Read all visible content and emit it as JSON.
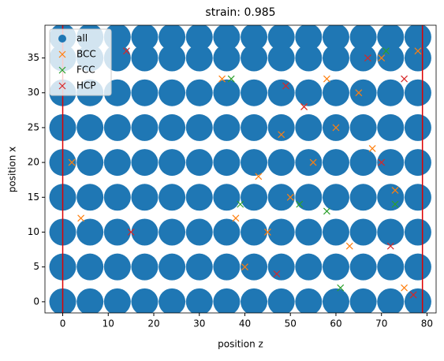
{
  "chart_data": {
    "type": "scatter",
    "title": "strain: 0.985",
    "xlabel": "position z",
    "ylabel": "position x",
    "xlim": [
      -3.9,
      82
    ],
    "ylim": [
      -1.6,
      39.7
    ],
    "xticks": [
      0,
      10,
      20,
      30,
      40,
      50,
      60,
      70,
      80
    ],
    "yticks": [
      0,
      5,
      10,
      15,
      20,
      25,
      30,
      35
    ],
    "legend": "upper left",
    "vlines": {
      "values": [
        0,
        79
      ],
      "color": "#e00000"
    },
    "series": [
      {
        "name": "all",
        "color": "#1f77b4",
        "marker": "o",
        "x": [
          0,
          6,
          12,
          18,
          24,
          30,
          36,
          42,
          48,
          54,
          60,
          66,
          72,
          78,
          0,
          6,
          12,
          18,
          24,
          30,
          36,
          42,
          48,
          54,
          60,
          66,
          72,
          78,
          0,
          6,
          12,
          18,
          24,
          30,
          36,
          42,
          48,
          54,
          60,
          66,
          72,
          78,
          0,
          6,
          12,
          18,
          24,
          30,
          36,
          42,
          48,
          54,
          60,
          66,
          72,
          78,
          0,
          6,
          12,
          18,
          24,
          30,
          36,
          42,
          48,
          54,
          60,
          66,
          72,
          78,
          0,
          6,
          12,
          18,
          24,
          30,
          36,
          42,
          48,
          54,
          60,
          66,
          72,
          78,
          0,
          6,
          12,
          18,
          24,
          30,
          36,
          42,
          48,
          54,
          60,
          66,
          72,
          78,
          0,
          6,
          12,
          18,
          24,
          30,
          36,
          42,
          48,
          54,
          60,
          66,
          72,
          78,
          0,
          6,
          12,
          18,
          24,
          30,
          36,
          42,
          48,
          54,
          60,
          66,
          72,
          78
        ],
        "values": [
          0,
          0,
          0,
          0,
          0,
          0,
          0,
          0,
          0,
          0,
          0,
          0,
          0,
          0,
          5,
          5,
          5,
          5,
          5,
          5,
          5,
          5,
          5,
          5,
          5,
          5,
          5,
          5,
          10,
          10,
          10,
          10,
          10,
          10,
          10,
          10,
          10,
          10,
          10,
          10,
          10,
          10,
          15,
          15,
          15,
          15,
          15,
          15,
          15,
          15,
          15,
          15,
          15,
          15,
          15,
          15,
          20,
          20,
          20,
          20,
          20,
          20,
          20,
          20,
          20,
          20,
          20,
          20,
          20,
          20,
          25,
          25,
          25,
          25,
          25,
          25,
          25,
          25,
          25,
          25,
          25,
          25,
          25,
          25,
          30,
          30,
          30,
          30,
          30,
          30,
          30,
          30,
          30,
          30,
          30,
          30,
          30,
          30,
          35,
          35,
          35,
          35,
          35,
          35,
          35,
          35,
          35,
          35,
          35,
          35,
          35,
          35,
          38,
          38,
          38,
          38,
          38,
          38,
          38,
          38,
          38,
          38,
          38,
          38,
          38,
          38
        ]
      },
      {
        "name": "BCC",
        "color": "#ff7f0e",
        "marker": "x",
        "x": [
          40,
          45,
          50,
          55,
          60,
          65,
          70,
          75,
          38,
          43,
          48,
          53,
          58,
          63,
          68,
          73,
          78,
          2,
          4,
          35
        ],
        "values": [
          5,
          10,
          15,
          20,
          25,
          30,
          35,
          2,
          12,
          18,
          24,
          28,
          32,
          8,
          22,
          16,
          36,
          20,
          12,
          32
        ]
      },
      {
        "name": "FCC",
        "color": "#2ca02c",
        "marker": "x",
        "x": [
          37,
          39,
          52,
          58,
          61,
          71,
          73
        ],
        "values": [
          32,
          14,
          14,
          13,
          2,
          36,
          14
        ]
      },
      {
        "name": "HCP",
        "color": "#d62728",
        "marker": "x",
        "x": [
          14,
          15,
          47,
          49,
          53,
          67,
          70,
          72,
          75,
          77
        ],
        "values": [
          36,
          10,
          4,
          31,
          28,
          35,
          20,
          8,
          32,
          1
        ]
      }
    ]
  }
}
